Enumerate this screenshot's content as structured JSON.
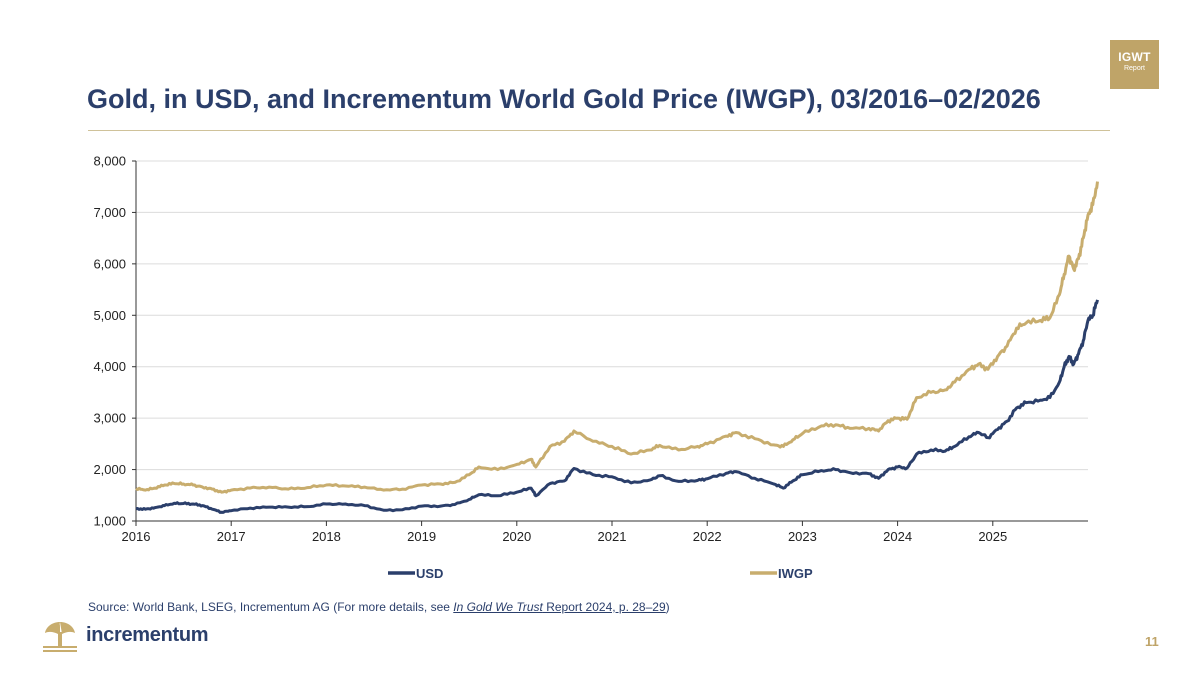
{
  "header": {
    "title": "Gold, in USD, and Incrementum World Gold Price (IWGP), 03/2016–02/2026",
    "badge_main": "IGWT",
    "badge_sub": "Report"
  },
  "footer": {
    "source_prefix": "Source: World Bank, LSEG, Incrementum AG (For more details, see ",
    "source_link_italic": "In Gold We Trust",
    "source_link_rest": " Report 2024, p. 28–29",
    "source_suffix": ")",
    "logo_text": "incrementum",
    "page_number": "11"
  },
  "colors": {
    "usd": "#2b3f6b",
    "iwgp": "#c8ad6e",
    "accent": "#bfa468"
  },
  "chart_data": {
    "type": "line",
    "ylim": [
      1000,
      8000
    ],
    "xlim": [
      2016,
      2026
    ],
    "yticks": [
      1000,
      2000,
      3000,
      4000,
      5000,
      6000,
      7000,
      8000
    ],
    "ytick_labels": [
      "1,000",
      "2,000",
      "3,000",
      "4,000",
      "5,000",
      "6,000",
      "7,000",
      "8,000"
    ],
    "xticks": [
      2016,
      2017,
      2018,
      2019,
      2020,
      2021,
      2022,
      2023,
      2024,
      2025
    ],
    "xtick_labels": [
      "2016",
      "2017",
      "2018",
      "2019",
      "2020",
      "2021",
      "2022",
      "2023",
      "2024",
      "2025"
    ],
    "grid": "horizontal",
    "legend_position": "bottom",
    "series": [
      {
        "name": "USD",
        "color": "#2b3f6b",
        "points": [
          [
            2016.0,
            1240
          ],
          [
            2016.1,
            1230
          ],
          [
            2016.2,
            1260
          ],
          [
            2016.3,
            1300
          ],
          [
            2016.4,
            1345
          ],
          [
            2016.5,
            1340
          ],
          [
            2016.6,
            1330
          ],
          [
            2016.7,
            1300
          ],
          [
            2016.8,
            1230
          ],
          [
            2016.9,
            1170
          ],
          [
            2017.0,
            1200
          ],
          [
            2017.2,
            1250
          ],
          [
            2017.4,
            1270
          ],
          [
            2017.6,
            1270
          ],
          [
            2017.8,
            1280
          ],
          [
            2018.0,
            1330
          ],
          [
            2018.2,
            1330
          ],
          [
            2018.4,
            1300
          ],
          [
            2018.6,
            1210
          ],
          [
            2018.8,
            1220
          ],
          [
            2019.0,
            1290
          ],
          [
            2019.2,
            1290
          ],
          [
            2019.35,
            1320
          ],
          [
            2019.5,
            1420
          ],
          [
            2019.6,
            1510
          ],
          [
            2019.8,
            1490
          ],
          [
            2020.0,
            1560
          ],
          [
            2020.15,
            1640
          ],
          [
            2020.2,
            1490
          ],
          [
            2020.35,
            1730
          ],
          [
            2020.5,
            1780
          ],
          [
            2020.6,
            2020
          ],
          [
            2020.8,
            1900
          ],
          [
            2021.0,
            1860
          ],
          [
            2021.2,
            1740
          ],
          [
            2021.4,
            1800
          ],
          [
            2021.5,
            1880
          ],
          [
            2021.7,
            1770
          ],
          [
            2021.9,
            1790
          ],
          [
            2022.0,
            1820
          ],
          [
            2022.2,
            1930
          ],
          [
            2022.3,
            1960
          ],
          [
            2022.5,
            1830
          ],
          [
            2022.7,
            1720
          ],
          [
            2022.8,
            1640
          ],
          [
            2022.9,
            1780
          ],
          [
            2023.0,
            1900
          ],
          [
            2023.2,
            1980
          ],
          [
            2023.35,
            2000
          ],
          [
            2023.5,
            1940
          ],
          [
            2023.7,
            1920
          ],
          [
            2023.8,
            1830
          ],
          [
            2023.9,
            2000
          ],
          [
            2024.0,
            2050
          ],
          [
            2024.1,
            2030
          ],
          [
            2024.2,
            2300
          ],
          [
            2024.35,
            2380
          ],
          [
            2024.5,
            2360
          ],
          [
            2024.6,
            2450
          ],
          [
            2024.75,
            2640
          ],
          [
            2024.85,
            2720
          ],
          [
            2024.95,
            2620
          ],
          [
            2025.05,
            2780
          ],
          [
            2025.15,
            2940
          ],
          [
            2025.25,
            3200
          ],
          [
            2025.35,
            3300
          ],
          [
            2025.5,
            3350
          ],
          [
            2025.6,
            3400
          ],
          [
            2025.7,
            3700
          ],
          [
            2025.75,
            4000
          ],
          [
            2025.8,
            4200
          ],
          [
            2025.85,
            4050
          ],
          [
            2025.9,
            4250
          ],
          [
            2025.95,
            4500
          ],
          [
            2026.0,
            4900
          ],
          [
            2026.05,
            5000
          ],
          [
            2026.1,
            5300
          ]
        ]
      },
      {
        "name": "IWGP",
        "color": "#c8ad6e",
        "points": [
          [
            2016.0,
            1630
          ],
          [
            2016.1,
            1600
          ],
          [
            2016.2,
            1640
          ],
          [
            2016.3,
            1700
          ],
          [
            2016.4,
            1730
          ],
          [
            2016.5,
            1720
          ],
          [
            2016.6,
            1700
          ],
          [
            2016.7,
            1660
          ],
          [
            2016.8,
            1620
          ],
          [
            2016.9,
            1560
          ],
          [
            2017.0,
            1600
          ],
          [
            2017.2,
            1640
          ],
          [
            2017.4,
            1660
          ],
          [
            2017.6,
            1620
          ],
          [
            2017.8,
            1650
          ],
          [
            2018.0,
            1700
          ],
          [
            2018.2,
            1680
          ],
          [
            2018.4,
            1660
          ],
          [
            2018.6,
            1600
          ],
          [
            2018.8,
            1620
          ],
          [
            2019.0,
            1700
          ],
          [
            2019.2,
            1720
          ],
          [
            2019.35,
            1750
          ],
          [
            2019.5,
            1900
          ],
          [
            2019.6,
            2050
          ],
          [
            2019.8,
            2000
          ],
          [
            2020.0,
            2100
          ],
          [
            2020.15,
            2200
          ],
          [
            2020.2,
            2050
          ],
          [
            2020.35,
            2450
          ],
          [
            2020.5,
            2550
          ],
          [
            2020.6,
            2750
          ],
          [
            2020.8,
            2550
          ],
          [
            2021.0,
            2450
          ],
          [
            2021.2,
            2300
          ],
          [
            2021.4,
            2380
          ],
          [
            2021.5,
            2470
          ],
          [
            2021.7,
            2380
          ],
          [
            2021.9,
            2450
          ],
          [
            2022.0,
            2500
          ],
          [
            2022.2,
            2650
          ],
          [
            2022.3,
            2720
          ],
          [
            2022.5,
            2600
          ],
          [
            2022.7,
            2480
          ],
          [
            2022.8,
            2450
          ],
          [
            2022.9,
            2580
          ],
          [
            2023.0,
            2700
          ],
          [
            2023.2,
            2850
          ],
          [
            2023.35,
            2870
          ],
          [
            2023.5,
            2800
          ],
          [
            2023.7,
            2800
          ],
          [
            2023.8,
            2750
          ],
          [
            2023.9,
            2950
          ],
          [
            2024.0,
            3000
          ],
          [
            2024.1,
            2980
          ],
          [
            2024.2,
            3400
          ],
          [
            2024.35,
            3500
          ],
          [
            2024.5,
            3550
          ],
          [
            2024.6,
            3700
          ],
          [
            2024.75,
            3950
          ],
          [
            2024.85,
            4050
          ],
          [
            2024.95,
            3950
          ],
          [
            2025.05,
            4200
          ],
          [
            2025.15,
            4400
          ],
          [
            2025.25,
            4750
          ],
          [
            2025.35,
            4850
          ],
          [
            2025.5,
            4900
          ],
          [
            2025.6,
            4950
          ],
          [
            2025.7,
            5400
          ],
          [
            2025.75,
            5800
          ],
          [
            2025.8,
            6150
          ],
          [
            2025.85,
            5900
          ],
          [
            2025.9,
            6100
          ],
          [
            2025.95,
            6500
          ],
          [
            2026.0,
            6950
          ],
          [
            2026.05,
            7150
          ],
          [
            2026.1,
            7600
          ]
        ]
      }
    ]
  }
}
